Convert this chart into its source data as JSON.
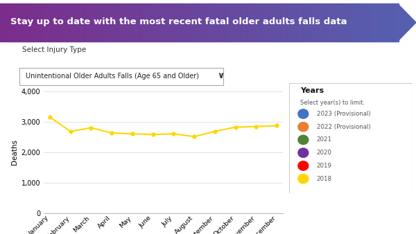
{
  "title": "Stay up to date with the most recent fatal older adults falls data",
  "title_bg_color_left": "#7B2D8B",
  "title_bg_color_right": "#5560B0",
  "title_text_color": "#ffffff",
  "subtitle_label": "Select Injury Type",
  "dropdown_text": "Unintentional Older Adults Falls (Age 65 and Older)",
  "ylabel": "Deaths",
  "months": [
    "January",
    "February",
    "March",
    "April",
    "May",
    "June",
    "July",
    "August",
    "September",
    "October",
    "November",
    "December"
  ],
  "series_2018": [
    3150,
    2680,
    2800,
    2630,
    2600,
    2580,
    2600,
    2510,
    2680,
    2820,
    2840,
    2870
  ],
  "line_color_2018": "#FFD700",
  "ylim": [
    0,
    4000
  ],
  "yticks": [
    0,
    1000,
    2000,
    3000,
    4000
  ],
  "legend_title": "Years",
  "legend_subtitle": "Select year(s) to limit.",
  "legend_entries": [
    {
      "label": "2023 (Provisional)",
      "color": "#4472C4"
    },
    {
      "label": "2022 (Provisional)",
      "color": "#ED7D31"
    },
    {
      "label": "2021",
      "color": "#548235"
    },
    {
      "label": "2020",
      "color": "#7030A0"
    },
    {
      "label": "2019",
      "color": "#FF0000"
    },
    {
      "label": "2018",
      "color": "#FFD700"
    }
  ],
  "bg_color": "#ffffff",
  "plot_bg_color": "#ffffff",
  "grid_color": "#dddddd",
  "dropdown_border_color": "#aaaaaa"
}
